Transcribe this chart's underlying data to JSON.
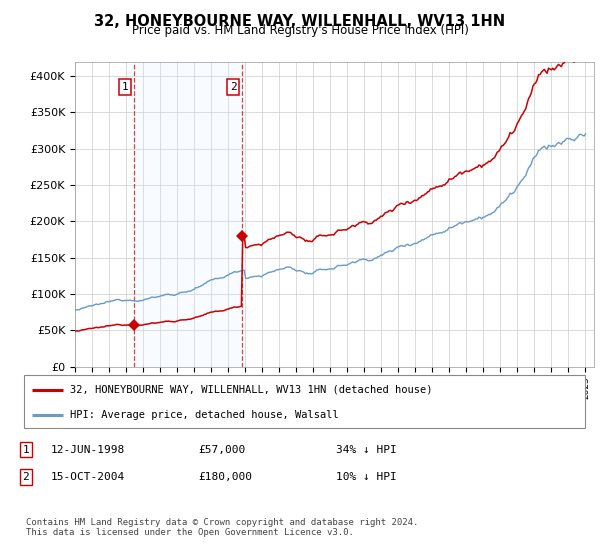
{
  "title": "32, HONEYBOURNE WAY, WILLENHALL, WV13 1HN",
  "subtitle": "Price paid vs. HM Land Registry's House Price Index (HPI)",
  "ylabel_ticks": [
    "£0",
    "£50K",
    "£100K",
    "£150K",
    "£200K",
    "£250K",
    "£300K",
    "£350K",
    "£400K"
  ],
  "ylim": [
    0,
    420000
  ],
  "xlim_start": 1995.0,
  "xlim_end": 2025.5,
  "sale1_date": 1998.45,
  "sale1_price": 57000,
  "sale2_date": 2004.79,
  "sale2_price": 180000,
  "legend_line1": "32, HONEYBOURNE WAY, WILLENHALL, WV13 1HN (detached house)",
  "legend_line2": "HPI: Average price, detached house, Walsall",
  "line_color_red": "#cc0000",
  "line_color_blue": "#6699cc",
  "background_color": "#ffffff",
  "grid_color": "#cccccc",
  "shade_color": "#ddeeff",
  "footnote": "Contains HM Land Registry data © Crown copyright and database right 2024.\nThis data is licensed under the Open Government Licence v3.0."
}
